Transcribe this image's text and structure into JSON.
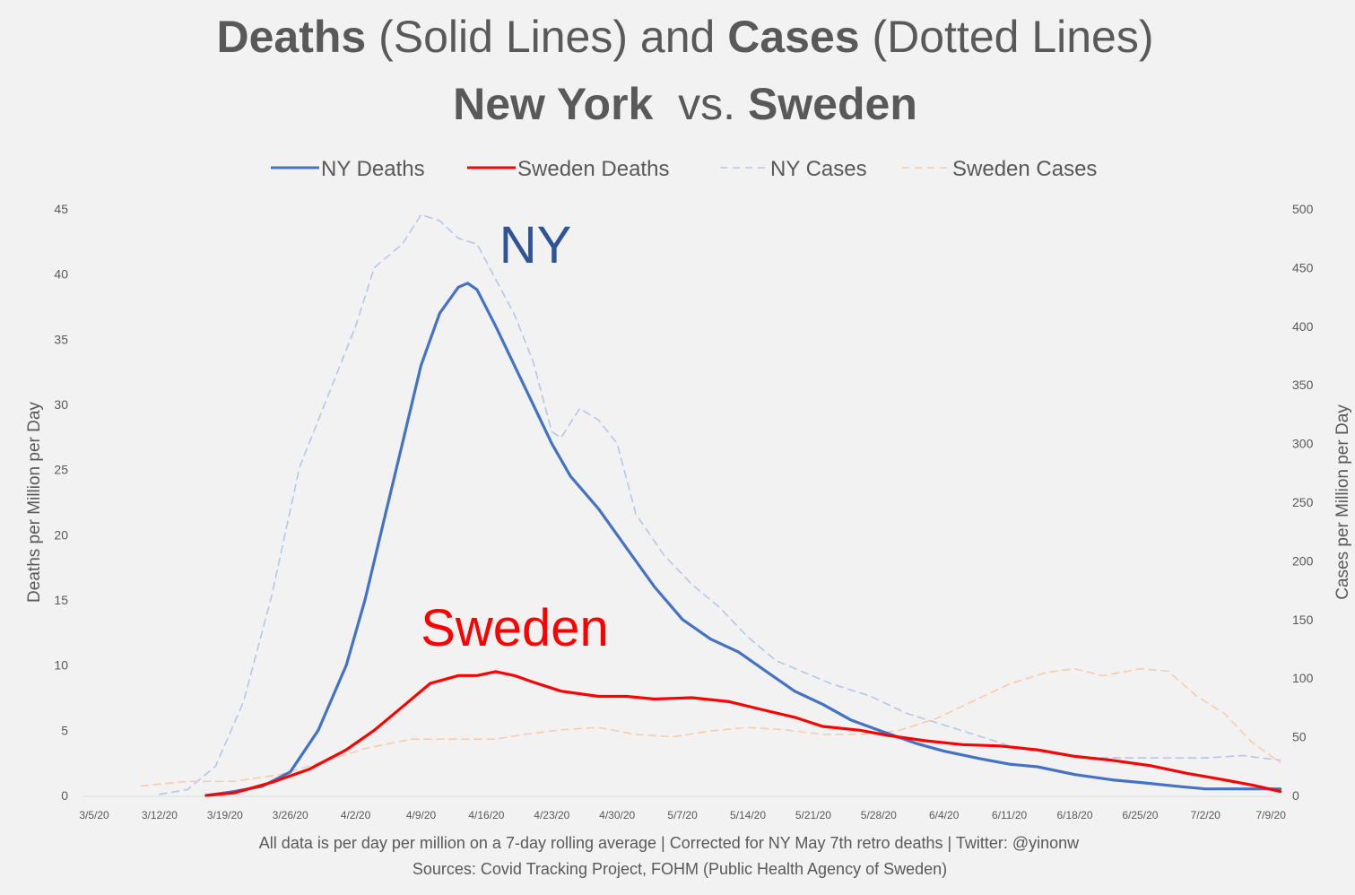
{
  "title": {
    "line1_bold_a": "Deaths",
    "line1_a": " (Solid Lines) and ",
    "line1_bold_b": "Cases",
    "line1_b": " (Dotted Lines)",
    "line2_bold_a": "New York",
    "line2_mid": "  vs. ",
    "line2_bold_b": "Sweden"
  },
  "legend": [
    "NY Deaths",
    "Sweden Deaths",
    "NY Cases",
    "Sweden Cases"
  ],
  "annotations": {
    "ny": "NY",
    "sweden": "Sweden"
  },
  "footnotes": {
    "line1": "All data is per day per million on a 7-day rolling average | Corrected for NY May 7th retro deaths | Twitter: @yinonw",
    "line2": "Sources: Covid Tracking Project, FOHM (Public Health Agency of Sweden)"
  },
  "colors": {
    "ny_deaths": "#4472c4",
    "sweden_deaths": "#ff0000",
    "ny_cases": "#b4c7e7",
    "sweden_cases": "#f8cbad",
    "ny_annotation": "#2f5597",
    "sweden_annotation": "#ff0000"
  },
  "chart_data": {
    "type": "line",
    "x_categories": [
      "3/5/20",
      "3/12/20",
      "3/19/20",
      "3/26/20",
      "4/2/20",
      "4/9/20",
      "4/16/20",
      "4/23/20",
      "4/30/20",
      "5/7/20",
      "5/14/20",
      "5/21/20",
      "5/28/20",
      "6/4/20",
      "6/11/20",
      "6/18/20",
      "6/25/20",
      "7/2/20",
      "7/9/20"
    ],
    "x_days_per_category": 7,
    "y_left": {
      "label": "Deaths per Million per Day",
      "min": 0,
      "max": 45,
      "ticks": [
        0,
        5,
        10,
        15,
        20,
        25,
        30,
        35,
        40,
        45
      ]
    },
    "y_right": {
      "label": "Cases per Million per Day",
      "min": 0,
      "max": 500,
      "ticks": [
        0,
        50,
        100,
        150,
        200,
        250,
        300,
        350,
        400,
        450,
        500
      ]
    },
    "series": [
      {
        "name": "NY Deaths",
        "axis": "left",
        "style": "solid",
        "points": [
          [
            "3/17/20",
            0
          ],
          [
            "3/20/20",
            0.3
          ],
          [
            "3/23/20",
            0.7
          ],
          [
            "3/26/20",
            1.8
          ],
          [
            "3/29/20",
            5
          ],
          [
            "4/1/20",
            10
          ],
          [
            "4/3/20",
            15
          ],
          [
            "4/5/20",
            21
          ],
          [
            "4/7/20",
            27
          ],
          [
            "4/9/20",
            33
          ],
          [
            "4/11/20",
            37
          ],
          [
            "4/13/20",
            39
          ],
          [
            "4/14/20",
            39.3
          ],
          [
            "4/15/20",
            38.8
          ],
          [
            "4/17/20",
            36
          ],
          [
            "4/19/20",
            33
          ],
          [
            "4/21/20",
            30
          ],
          [
            "4/23/20",
            27
          ],
          [
            "4/25/20",
            24.5
          ],
          [
            "4/28/20",
            22
          ],
          [
            "5/1/20",
            19
          ],
          [
            "5/4/20",
            16
          ],
          [
            "5/7/20",
            13.5
          ],
          [
            "5/10/20",
            12
          ],
          [
            "5/13/20",
            11
          ],
          [
            "5/16/20",
            9.5
          ],
          [
            "5/19/20",
            8
          ],
          [
            "5/22/20",
            7
          ],
          [
            "5/25/20",
            5.8
          ],
          [
            "5/28/20",
            5
          ],
          [
            "6/1/20",
            4
          ],
          [
            "6/4/20",
            3.4
          ],
          [
            "6/8/20",
            2.8
          ],
          [
            "6/11/20",
            2.4
          ],
          [
            "6/14/20",
            2.2
          ],
          [
            "6/18/20",
            1.6
          ],
          [
            "6/22/20",
            1.2
          ],
          [
            "6/25/20",
            1
          ],
          [
            "6/29/20",
            0.7
          ],
          [
            "7/2/20",
            0.5
          ],
          [
            "7/6/20",
            0.5
          ],
          [
            "7/9/20",
            0.5
          ],
          [
            "7/10/20",
            0.5
          ]
        ]
      },
      {
        "name": "Sweden Deaths",
        "axis": "left",
        "style": "solid",
        "points": [
          [
            "3/17/20",
            0
          ],
          [
            "3/20/20",
            0.2
          ],
          [
            "3/24/20",
            1
          ],
          [
            "3/28/20",
            2
          ],
          [
            "4/1/20",
            3.5
          ],
          [
            "4/4/20",
            5
          ],
          [
            "4/7/20",
            6.8
          ],
          [
            "4/9/20",
            8
          ],
          [
            "4/10/20",
            8.6
          ],
          [
            "4/13/20",
            9.2
          ],
          [
            "4/15/20",
            9.2
          ],
          [
            "4/17/20",
            9.5
          ],
          [
            "4/19/20",
            9.2
          ],
          [
            "4/21/20",
            8.7
          ],
          [
            "4/24/20",
            8
          ],
          [
            "4/28/20",
            7.6
          ],
          [
            "5/1/20",
            7.6
          ],
          [
            "5/4/20",
            7.4
          ],
          [
            "5/8/20",
            7.5
          ],
          [
            "5/12/20",
            7.2
          ],
          [
            "5/16/20",
            6.5
          ],
          [
            "5/19/20",
            6
          ],
          [
            "5/22/20",
            5.3
          ],
          [
            "5/26/20",
            5
          ],
          [
            "5/29/20",
            4.6
          ],
          [
            "6/2/20",
            4.2
          ],
          [
            "6/6/20",
            3.9
          ],
          [
            "6/10/20",
            3.8
          ],
          [
            "6/14/20",
            3.5
          ],
          [
            "6/18/20",
            3
          ],
          [
            "6/22/20",
            2.7
          ],
          [
            "6/26/20",
            2.3
          ],
          [
            "6/30/20",
            1.7
          ],
          [
            "7/4/20",
            1.2
          ],
          [
            "7/7/20",
            0.8
          ],
          [
            "7/10/20",
            0.3
          ]
        ]
      },
      {
        "name": "NY Cases",
        "axis": "right",
        "style": "dashed",
        "points": [
          [
            "3/12/20",
            1
          ],
          [
            "3/15/20",
            5
          ],
          [
            "3/18/20",
            25
          ],
          [
            "3/21/20",
            80
          ],
          [
            "3/24/20",
            170
          ],
          [
            "3/27/20",
            280
          ],
          [
            "3/30/20",
            340
          ],
          [
            "4/2/20",
            400
          ],
          [
            "4/4/20",
            450
          ],
          [
            "4/7/20",
            470
          ],
          [
            "4/9/20",
            495
          ],
          [
            "4/11/20",
            490
          ],
          [
            "4/13/20",
            475
          ],
          [
            "4/15/20",
            470
          ],
          [
            "4/17/20",
            440
          ],
          [
            "4/19/20",
            410
          ],
          [
            "4/21/20",
            370
          ],
          [
            "4/23/20",
            310
          ],
          [
            "4/24/20",
            305
          ],
          [
            "4/26/20",
            330
          ],
          [
            "4/28/20",
            320
          ],
          [
            "4/30/20",
            300
          ],
          [
            "5/2/20",
            240
          ],
          [
            "5/5/20",
            205
          ],
          [
            "5/8/20",
            180
          ],
          [
            "5/11/20",
            160
          ],
          [
            "5/14/20",
            135
          ],
          [
            "5/17/20",
            115
          ],
          [
            "5/20/20",
            105
          ],
          [
            "5/23/20",
            95
          ],
          [
            "5/27/20",
            85
          ],
          [
            "5/31/20",
            70
          ],
          [
            "6/4/20",
            60
          ],
          [
            "6/8/20",
            50
          ],
          [
            "6/12/20",
            40
          ],
          [
            "6/16/20",
            35
          ],
          [
            "6/20/20",
            32
          ],
          [
            "6/24/20",
            32
          ],
          [
            "6/28/20",
            32
          ],
          [
            "7/2/20",
            32
          ],
          [
            "7/6/20",
            34
          ],
          [
            "7/10/20",
            30
          ]
        ]
      },
      {
        "name": "Sweden Cases",
        "axis": "right",
        "style": "dashed",
        "points": [
          [
            "3/10/20",
            8
          ],
          [
            "3/15/20",
            12
          ],
          [
            "3/20/20",
            12
          ],
          [
            "3/25/20",
            18
          ],
          [
            "3/30/20",
            30
          ],
          [
            "4/3/20",
            40
          ],
          [
            "4/8/20",
            48
          ],
          [
            "4/13/20",
            48
          ],
          [
            "4/17/20",
            48
          ],
          [
            "4/20/20",
            52
          ],
          [
            "4/24/20",
            56
          ],
          [
            "4/28/20",
            58
          ],
          [
            "5/2/20",
            52
          ],
          [
            "5/6/20",
            50
          ],
          [
            "5/10/20",
            55
          ],
          [
            "5/14/20",
            58
          ],
          [
            "5/18/20",
            56
          ],
          [
            "5/22/20",
            52
          ],
          [
            "5/26/20",
            52
          ],
          [
            "5/30/20",
            55
          ],
          [
            "6/3/20",
            65
          ],
          [
            "6/7/20",
            80
          ],
          [
            "6/11/20",
            95
          ],
          [
            "6/15/20",
            105
          ],
          [
            "6/18/20",
            108
          ],
          [
            "6/21/20",
            102
          ],
          [
            "6/25/20",
            108
          ],
          [
            "6/28/20",
            106
          ],
          [
            "7/1/20",
            85
          ],
          [
            "7/4/20",
            70
          ],
          [
            "7/7/20",
            45
          ],
          [
            "7/10/20",
            28
          ]
        ]
      }
    ]
  }
}
